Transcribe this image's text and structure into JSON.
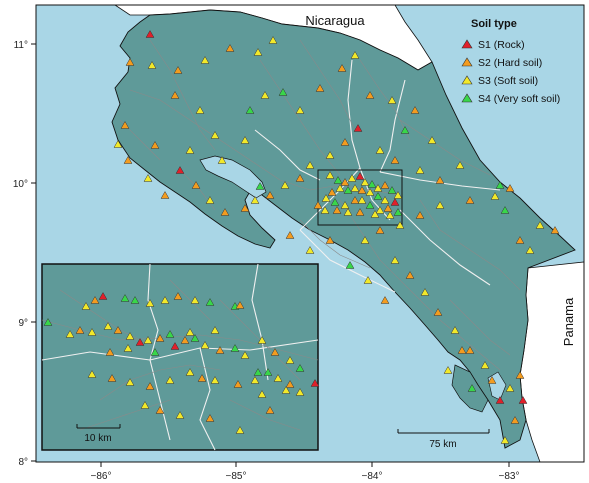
{
  "map": {
    "countries": {
      "north": "Nicaragua",
      "south": "Panama"
    },
    "axes": {
      "x_ticks": [
        "−86°",
        "−85°",
        "−84°",
        "−83°"
      ],
      "y_ticks": [
        "11°",
        "10°",
        "9°",
        "8°"
      ]
    },
    "legend": {
      "title": "Soil type",
      "items": [
        {
          "label": "S1 (Rock)",
          "color": "#e0202a"
        },
        {
          "label": "S2 (Hard soil)",
          "color": "#f39c1f"
        },
        {
          "label": "S3 (Soft soil)",
          "color": "#f2e92a"
        },
        {
          "label": "S4 (Very soft soil)",
          "color": "#39d64a"
        }
      ]
    },
    "scale_bars": {
      "main": "75 km",
      "inset": "10 km"
    },
    "colors": {
      "sea": "#a9d6e6",
      "land": "#5f9a99",
      "border": "#111111",
      "roads": "#8a8a8a",
      "provinces": "#f0f0f0"
    }
  }
}
